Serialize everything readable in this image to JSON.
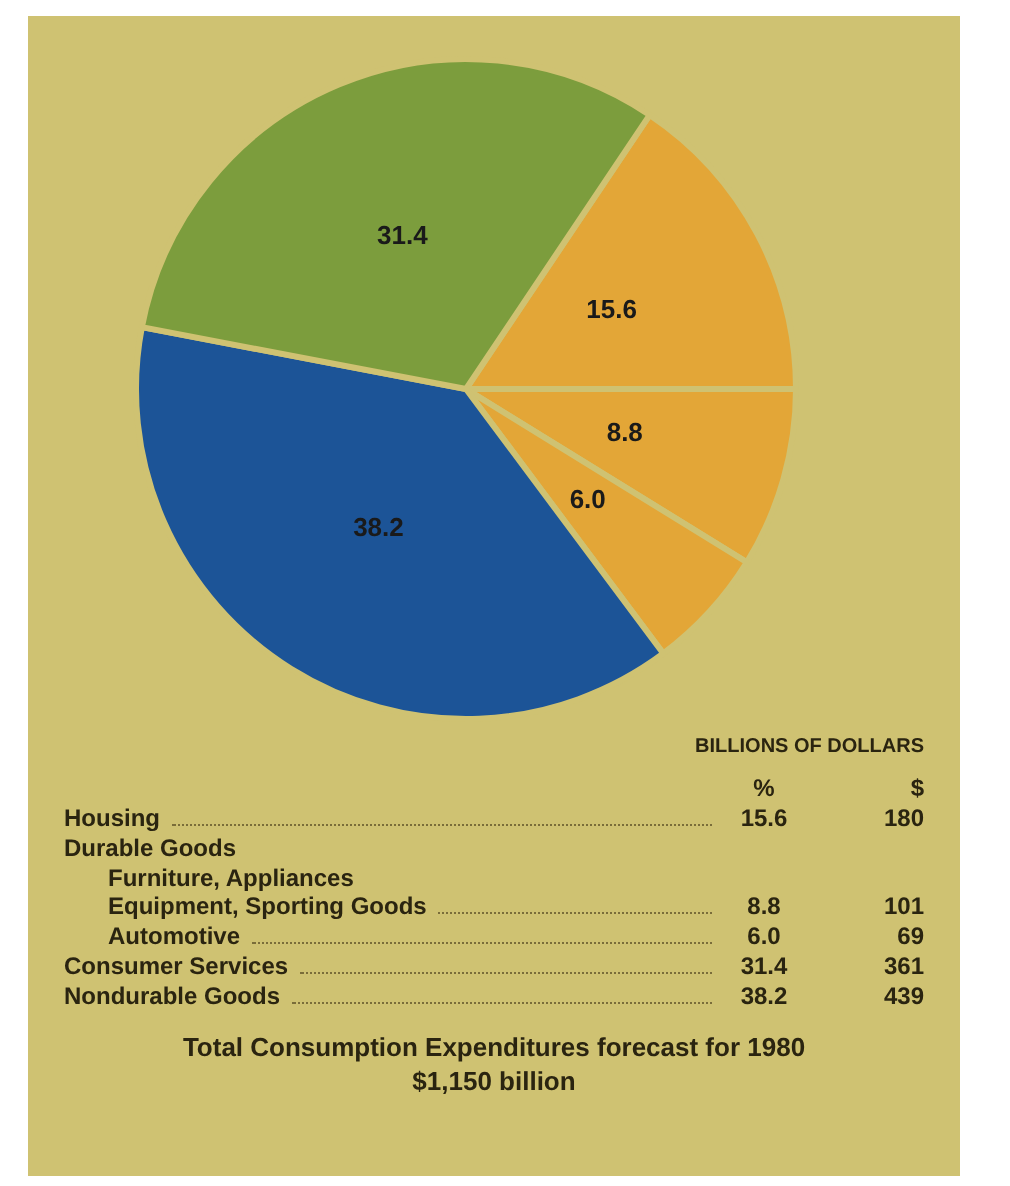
{
  "chart_data": [
    {
      "type": "pie",
      "categories": [
        null,
        null,
        null,
        null,
        null
      ],
      "values": [
        15.6,
        8.8,
        6.0,
        38.2,
        31.4
      ],
      "colors": [
        "#e3a637",
        "#e3a637",
        "#e3a637",
        "#1c5497",
        "#7c9d3d"
      ],
      "value_labels": [
        "15.6",
        "8.8",
        "6.0",
        "38.2",
        "31.4"
      ]
    },
    {
      "type": "other",
      "title": "Total Consumption Expenditures forecast for 1980\n$1,150 billion",
      "subtitle": "BILLIONS OF DOLLARS",
      "categories": [
        "Housing",
        "Furniture, Appliances\nEquipment, Sporting Goods",
        "Automotive",
        "Consumer Services",
        "Nondurable Goods"
      ],
      "series": [
        {
          "name": "%",
          "values": [
            15.6,
            8.8,
            6.0,
            31.4,
            38.2
          ],
          "value_labels": [
            "15.6",
            "8.8",
            "6.0",
            "31.4",
            "38.2"
          ]
        },
        {
          "name": "$",
          "values": [
            180,
            101,
            69,
            361,
            439
          ]
        }
      ],
      "data_labels": true,
      "annotations": [
        "Durable Goods"
      ]
    }
  ]
}
